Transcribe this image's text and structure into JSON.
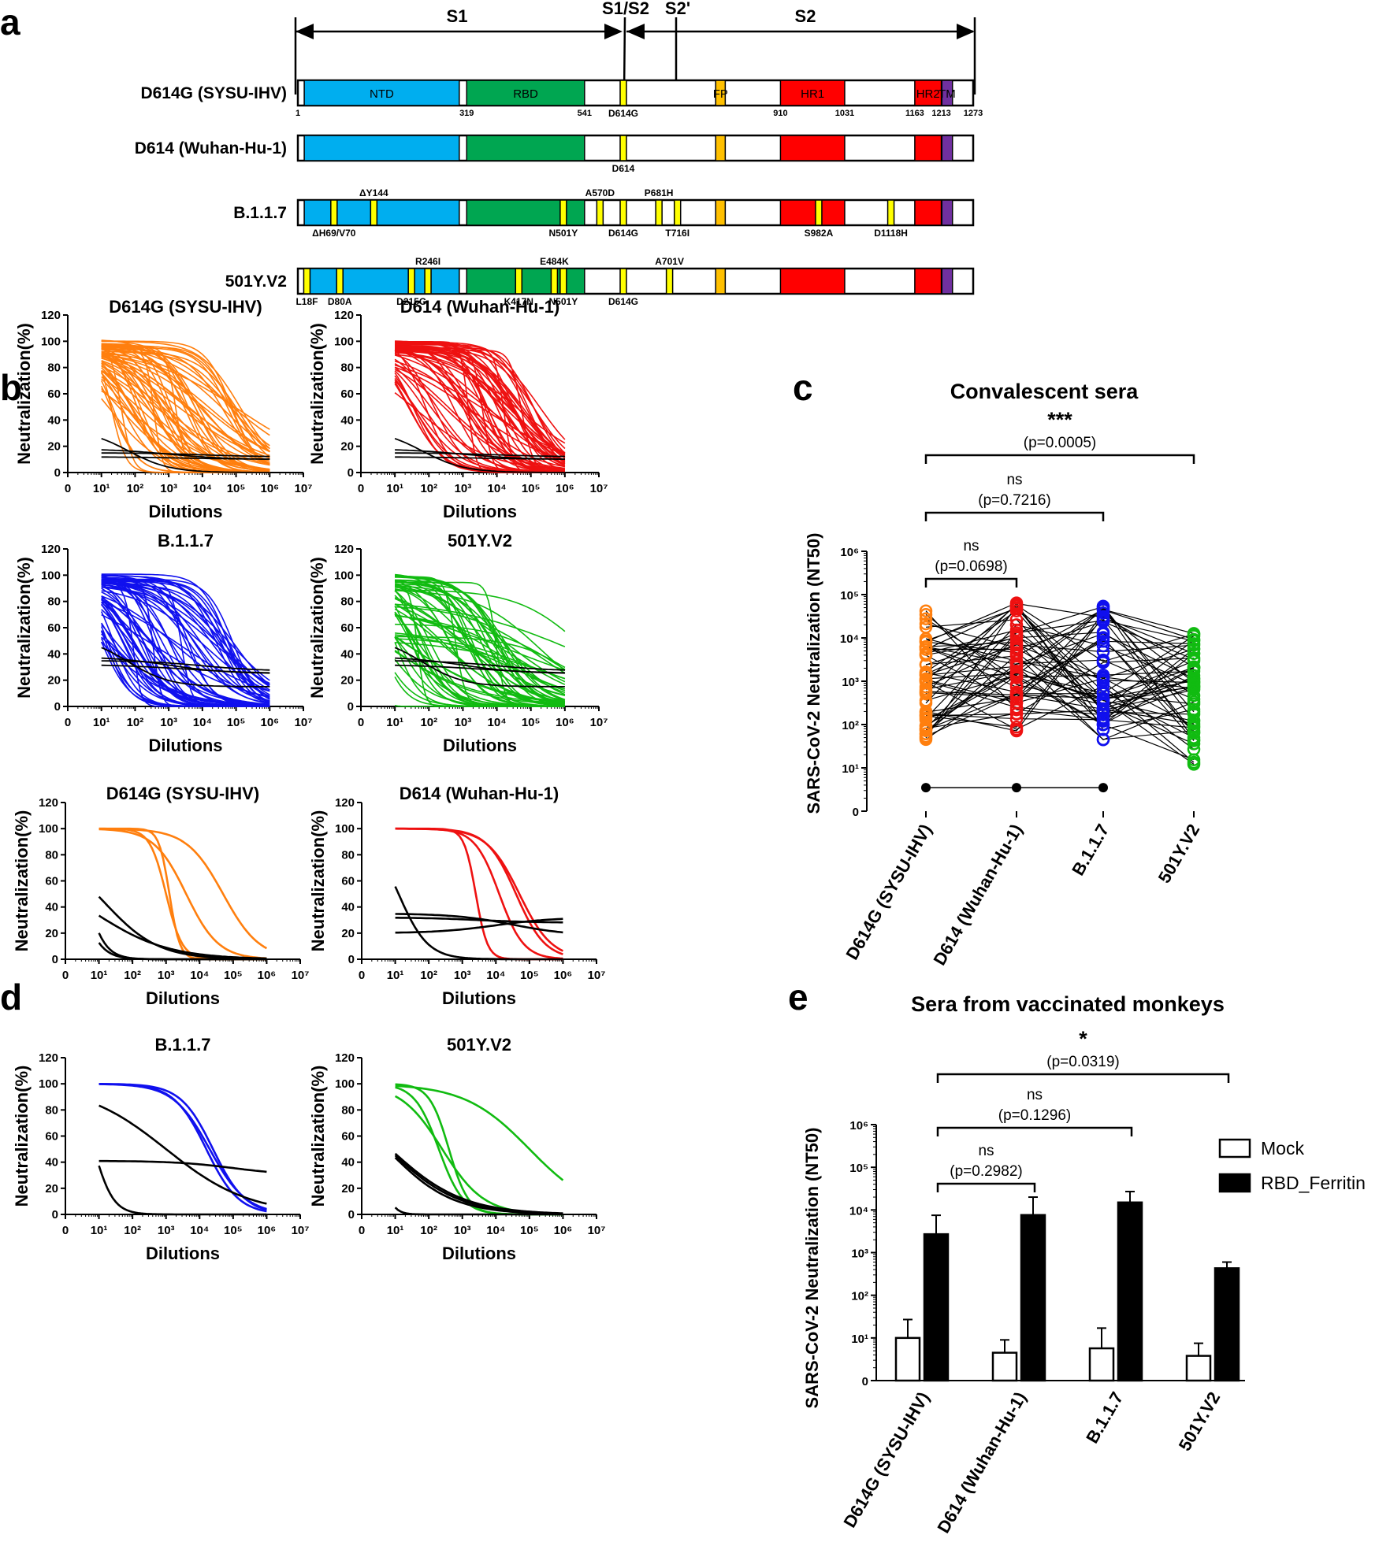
{
  "panel_labels": {
    "a": "a",
    "b": "b",
    "c": "c",
    "d": "d",
    "e": "e"
  },
  "colors": {
    "D614G": "#ff7f0e",
    "D614": "#ee1111",
    "B117": "#1010ee",
    "V2": "#11bb11",
    "neg": "#000000",
    "NTD": "#00aeef",
    "RBD": "#00a651",
    "FP": "#ffc000",
    "HR1": "#ff0000",
    "HR2": "#ff0000",
    "TM": "#7030a0",
    "mut": "#ffff00"
  },
  "panel_a": {
    "regions": {
      "s1": "S1",
      "s1s2": "S1/S2",
      "s2p": "S2'",
      "s2": "S2"
    },
    "domains": [
      {
        "name": "NTD",
        "start": 13,
        "end": 305,
        "color": "NTD"
      },
      {
        "name": "RBD",
        "start": 319,
        "end": 541,
        "color": "RBD"
      },
      {
        "name": "FP",
        "start": 788,
        "end": 806,
        "color": "FP"
      },
      {
        "name": "HR1",
        "start": 910,
        "end": 1031,
        "color": "HR1"
      },
      {
        "name": "HR2",
        "start": 1163,
        "end": 1213,
        "color": "HR2"
      },
      {
        "name": "TM",
        "start": 1214,
        "end": 1234,
        "color": "TM"
      }
    ],
    "residue_ticks": [
      "1",
      "319",
      "541",
      "910",
      "1031",
      "1163",
      "1213",
      "1273"
    ],
    "variants": [
      {
        "name": "D614G (SYSU-IHV)",
        "mutations": [
          {
            "pos": 614,
            "label": "D614G",
            "side": "below"
          }
        ]
      },
      {
        "name": "D614 (Wuhan-Hu-1)",
        "mutations": [
          {
            "pos": 614,
            "label": "D614",
            "side": "below"
          }
        ]
      },
      {
        "name": "B.1.1.7",
        "mutations": [
          {
            "pos": 69,
            "label": "ΔH69/V70",
            "side": "below"
          },
          {
            "pos": 144,
            "label": "ΔY144",
            "side": "above"
          },
          {
            "pos": 501,
            "label": "N501Y",
            "side": "below"
          },
          {
            "pos": 570,
            "label": "A570D",
            "side": "above"
          },
          {
            "pos": 614,
            "label": "D614G",
            "side": "below"
          },
          {
            "pos": 681,
            "label": "P681H",
            "side": "above"
          },
          {
            "pos": 716,
            "label": "T716I",
            "side": "below"
          },
          {
            "pos": 982,
            "label": "S982A",
            "side": "below"
          },
          {
            "pos": 1118,
            "label": "D1118H",
            "side": "below"
          }
        ]
      },
      {
        "name": "501Y.V2",
        "mutations": [
          {
            "pos": 18,
            "label": "L18F",
            "side": "below"
          },
          {
            "pos": 80,
            "label": "D80A",
            "side": "below"
          },
          {
            "pos": 215,
            "label": "D215G",
            "side": "below"
          },
          {
            "pos": 246,
            "label": "R246I",
            "side": "above"
          },
          {
            "pos": 417,
            "label": "K417N",
            "side": "below"
          },
          {
            "pos": 484,
            "label": "E484K",
            "side": "above"
          },
          {
            "pos": 501,
            "label": "N501Y",
            "side": "below"
          },
          {
            "pos": 614,
            "label": "D614G",
            "side": "below"
          },
          {
            "pos": 701,
            "label": "A701V",
            "side": "above"
          }
        ]
      }
    ]
  },
  "panel_b_d_axes": {
    "ylabel": "Neutralization(%)",
    "xlabel": "Dilutions",
    "y_ticks": [
      "0",
      "20",
      "40",
      "60",
      "80",
      "100",
      "120"
    ],
    "x_ticks": [
      "0",
      "10¹",
      "10²",
      "10³",
      "10⁴",
      "10⁵",
      "10⁶",
      "10⁷"
    ]
  },
  "panel_b_titles": [
    "D614G (SYSU-IHV)",
    "D614 (Wuhan-Hu-1)",
    "B.1.1.7",
    "501Y.V2"
  ],
  "panel_d_titles": [
    "D614G (SYSU-IHV)",
    "D614 (Wuhan-Hu-1)",
    "B.1.1.7",
    "501Y.V2"
  ],
  "chart_data": [
    {
      "type": "line",
      "title": "D614G (SYSU-IHV)",
      "xlabel": "Dilutions",
      "ylabel": "Neutralization(%)",
      "x_scale": "log",
      "xlim": [
        0,
        7
      ],
      "ylim": [
        0,
        120
      ],
      "series_note": "~60 convalescent sera (orange) and 4 negatives (black)"
    },
    {
      "type": "line",
      "title": "D614 (Wuhan-Hu-1)",
      "xlabel": "Dilutions",
      "ylabel": "Neutralization(%)",
      "x_scale": "log",
      "xlim": [
        0,
        7
      ],
      "ylim": [
        0,
        120
      ]
    },
    {
      "type": "line",
      "title": "B.1.1.7",
      "xlabel": "Dilutions",
      "ylabel": "Neutralization(%)",
      "x_scale": "log",
      "xlim": [
        0,
        7
      ],
      "ylim": [
        0,
        120
      ]
    },
    {
      "type": "line",
      "title": "501Y.V2",
      "xlabel": "Dilutions",
      "ylabel": "Neutralization(%)",
      "x_scale": "log",
      "xlim": [
        0,
        7
      ],
      "ylim": [
        0,
        120
      ]
    },
    {
      "type": "scatter",
      "title": "Convalescent sera",
      "ylabel": "SARS-CoV-2 Neutralization (NT50)",
      "y_scale": "log",
      "categories": [
        "D614G (SYSU-IHV)",
        "D614 (Wuhan-Hu-1)",
        "B.1.1.7",
        "501Y.V2"
      ],
      "y_ticks": [
        "0",
        "10¹",
        "10²",
        "10³",
        "10⁴",
        "10⁵",
        "10⁶"
      ],
      "comparisons": [
        {
          "from": 0,
          "to": 1,
          "label": "ns",
          "p": "(p=0.0698)"
        },
        {
          "from": 0,
          "to": 2,
          "label": "ns",
          "p": "(p=0.7216)"
        },
        {
          "from": 0,
          "to": 3,
          "label": "***",
          "p": "(p=0.0005)"
        }
      ]
    },
    {
      "type": "line",
      "title": "D614G (SYSU-IHV)",
      "subplot": "d",
      "x_scale": "log",
      "ylim": [
        0,
        120
      ],
      "series": [
        {
          "group": "pos",
          "top": 100,
          "bottom": 0,
          "mid": 3.0,
          "slope": 1.8
        },
        {
          "group": "pos",
          "top": 100,
          "bottom": 0,
          "mid": 3.1,
          "slope": 2.8
        },
        {
          "group": "pos",
          "top": 100,
          "bottom": 0,
          "mid": 3.6,
          "slope": 0.9
        },
        {
          "group": "pos",
          "top": 100,
          "bottom": 0,
          "mid": 4.7,
          "slope": 0.8
        },
        {
          "group": "neg",
          "top": 100,
          "bottom": 0,
          "mid": 0.6,
          "slope": 1.5
        },
        {
          "group": "neg",
          "top": 100,
          "bottom": 0,
          "mid": 0.4,
          "slope": 1.4
        },
        {
          "group": "neg",
          "top": 85,
          "bottom": 0,
          "mid": 1.2,
          "slope": 0.55
        },
        {
          "group": "neg",
          "top": 70,
          "bottom": 0,
          "mid": 0.9,
          "slope": 0.4
        }
      ]
    },
    {
      "type": "line",
      "title": "D614 (Wuhan-Hu-1)",
      "subplot": "d",
      "x_scale": "log",
      "ylim": [
        0,
        120
      ],
      "series": [
        {
          "group": "pos",
          "top": 100,
          "bottom": 0,
          "mid": 3.4,
          "slope": 2.5
        },
        {
          "group": "pos",
          "top": 100,
          "bottom": 0,
          "mid": 4.1,
          "slope": 1.2
        },
        {
          "group": "pos",
          "top": 100,
          "bottom": 0,
          "mid": 4.6,
          "slope": 1.0
        },
        {
          "group": "pos",
          "top": 100,
          "bottom": 0,
          "mid": 4.7,
          "slope": 0.9
        },
        {
          "group": "neg",
          "top": 100,
          "bottom": 0,
          "mid": 1.1,
          "slope": 1.0
        },
        {
          "group": "neg",
          "top": 35,
          "bottom": 18,
          "mid": 4.5,
          "slope": 0.5
        },
        {
          "group": "neg",
          "top": 32,
          "bottom": 28,
          "mid": 3.5,
          "slope": 0.5
        },
        {
          "group": "neg",
          "top": 20,
          "bottom": 32,
          "mid": 4.0,
          "slope": 0.5
        }
      ]
    },
    {
      "type": "line",
      "title": "B.1.1.7",
      "subplot": "d",
      "x_scale": "log",
      "ylim": [
        0,
        120
      ],
      "series": [
        {
          "group": "pos",
          "top": 100,
          "bottom": 0,
          "mid": 4.2,
          "slope": 0.9
        },
        {
          "group": "pos",
          "top": 100,
          "bottom": 0,
          "mid": 4.4,
          "slope": 0.9
        },
        {
          "group": "pos",
          "top": 100,
          "bottom": 0,
          "mid": 4.3,
          "slope": 0.8
        },
        {
          "group": "neg",
          "top": 100,
          "bottom": 0,
          "mid": 0.85,
          "slope": 1.5
        },
        {
          "group": "neg",
          "top": 100,
          "bottom": 0,
          "mid": 3.0,
          "slope": 0.35
        },
        {
          "group": "neg",
          "top": 41,
          "bottom": 30,
          "mid": 5.0,
          "slope": 0.5
        }
      ]
    },
    {
      "type": "line",
      "title": "501Y.V2",
      "subplot": "d",
      "x_scale": "log",
      "ylim": [
        0,
        120
      ],
      "series": [
        {
          "group": "pos",
          "top": 100,
          "bottom": 0,
          "mid": 2.6,
          "slope": 1.5
        },
        {
          "group": "pos",
          "top": 100,
          "bottom": 0,
          "mid": 2.3,
          "slope": 1.2
        },
        {
          "group": "pos",
          "top": 100,
          "bottom": 0,
          "mid": 2.4,
          "slope": 0.7
        },
        {
          "group": "pos",
          "top": 100,
          "bottom": 0,
          "mid": 5.0,
          "slope": 0.45
        },
        {
          "group": "neg",
          "top": 100,
          "bottom": 0,
          "mid": 0.5,
          "slope": 2.5
        },
        {
          "group": "neg",
          "top": 100,
          "bottom": 0,
          "mid": 0.75,
          "slope": 0.45
        },
        {
          "group": "neg",
          "top": 100,
          "bottom": 0,
          "mid": 0.8,
          "slope": 0.42
        },
        {
          "group": "neg",
          "top": 100,
          "bottom": 0,
          "mid": 0.85,
          "slope": 0.4
        }
      ]
    },
    {
      "type": "bar",
      "title": "Sera from vaccinated monkeys",
      "ylabel": "SARS-CoV-2 Neutralization (NT50)",
      "y_scale": "log",
      "categories": [
        "D614G (SYSU-IHV)",
        "D614 (Wuhan-Hu-1)",
        "B.1.1.7",
        "501Y.V2"
      ],
      "y_ticks": [
        "0",
        "10¹",
        "10²",
        "10³",
        "10⁴",
        "10⁵",
        "10⁶"
      ],
      "legend": [
        "Mock",
        "RBD_Ferritin"
      ],
      "series": [
        {
          "name": "Mock",
          "values": [
            10,
            4.5,
            5.7,
            3.8
          ],
          "err_hi": [
            27,
            9,
            17,
            7.5
          ]
        },
        {
          "name": "RBD_Ferritin",
          "values": [
            2700,
            7600,
            15000,
            430
          ],
          "err_hi": [
            7500,
            20000,
            27000,
            600
          ]
        }
      ],
      "comparisons": [
        {
          "from": 0,
          "to": 1,
          "label": "ns",
          "p": "(p=0.2982)"
        },
        {
          "from": 0,
          "to": 2,
          "label": "ns",
          "p": "(p=0.1296)"
        },
        {
          "from": 0,
          "to": 3,
          "label": "*",
          "p": "(p=0.0319)"
        }
      ]
    }
  ]
}
